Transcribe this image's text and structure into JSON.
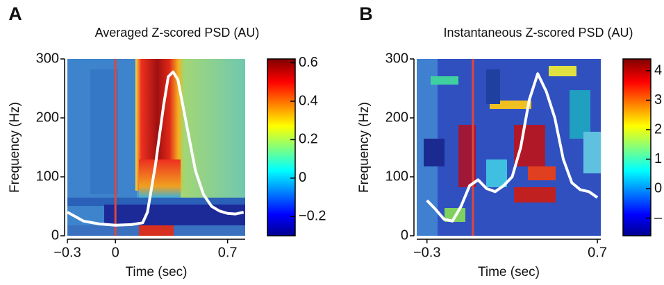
{
  "chart_data": [
    {
      "type": "line",
      "panel": "A",
      "title": "Averaged Z-scored PSD (AU)",
      "xlabel": "Time (sec)",
      "ylabel": "Frequency (Hz)",
      "xlim": [
        -0.3,
        0.81
      ],
      "xticks": [
        {
          "value": -0.3,
          "label": "−0.3"
        },
        0,
        0.7
      ],
      "ylim": [
        0,
        300
      ],
      "yticks": [
        0,
        100,
        200,
        300
      ],
      "x": [
        -0.3,
        -0.2,
        -0.1,
        0,
        0.1,
        0.17,
        0.2,
        0.25,
        0.3,
        0.33,
        0.36,
        0.39,
        0.45,
        0.5,
        0.55,
        0.6,
        0.65,
        0.7,
        0.75,
        0.8
      ],
      "series": [
        {
          "color": "#ffffff",
          "values": [
            40,
            25,
            20,
            18,
            19,
            22,
            40,
            120,
            220,
            270,
            278,
            265,
            180,
            110,
            70,
            50,
            42,
            38,
            37,
            40
          ]
        }
      ],
      "vline": {
        "value": 0,
        "color": "#e0463a"
      },
      "colorbar": {
        "lim": [
          -0.3,
          0.62
        ],
        "ticks": [
          {
            "value": -0.2,
            "label": "−0.2"
          },
          0,
          0.2,
          0.4,
          0.6
        ]
      }
    },
    {
      "type": "line",
      "panel": "B",
      "title": "Instantaneous Z-scored PSD (AU)",
      "xlabel": "Time (sec)",
      "ylabel": "Frequency (Hz)",
      "xlim": [
        -0.36,
        0.72
      ],
      "xticks": [
        {
          "value": -0.3,
          "label": "−0.3"
        },
        0.7
      ],
      "ylim": [
        0,
        300
      ],
      "yticks": [
        0,
        100,
        200,
        300
      ],
      "x": [
        -0.3,
        -0.25,
        -0.2,
        -0.15,
        -0.1,
        -0.05,
        0,
        0.05,
        0.1,
        0.15,
        0.2,
        0.25,
        0.3,
        0.35,
        0.4,
        0.45,
        0.5,
        0.55,
        0.6,
        0.65,
        0.7
      ],
      "series": [
        {
          "color": "#ffffff",
          "values": [
            60,
            45,
            28,
            25,
            50,
            85,
            95,
            80,
            75,
            85,
            100,
            150,
            230,
            275,
            245,
            200,
            130,
            90,
            78,
            75,
            65
          ]
        }
      ],
      "vline": {
        "value": -0.03,
        "color": "#e0463a"
      },
      "colorbar": {
        "lim": [
          -1.6,
          4.4
        ],
        "ticks": [
          {
            "value": -1,
            "label": "–"
          },
          0,
          1,
          2,
          3,
          4
        ]
      }
    }
  ]
}
